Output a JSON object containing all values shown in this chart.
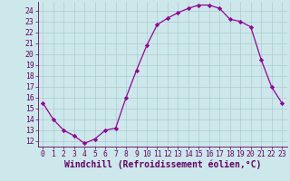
{
  "x": [
    0,
    1,
    2,
    3,
    4,
    5,
    6,
    7,
    8,
    9,
    10,
    11,
    12,
    13,
    14,
    15,
    16,
    17,
    18,
    19,
    20,
    21,
    22,
    23
  ],
  "y": [
    15.5,
    14.0,
    13.0,
    12.5,
    11.8,
    12.2,
    13.0,
    13.2,
    16.0,
    18.5,
    20.8,
    22.7,
    23.3,
    23.8,
    24.2,
    24.5,
    24.5,
    24.2,
    23.2,
    23.0,
    22.5,
    19.5,
    17.0,
    15.5
  ],
  "line_color": "#990099",
  "marker": "D",
  "marker_size": 2.2,
  "bg_color": "#cce8ea",
  "grid_color": "#aacdd0",
  "xlabel": "Windchill (Refroidissement éolien,°C)",
  "ylim_min": 11.5,
  "ylim_max": 24.8,
  "xlim_min": -0.5,
  "xlim_max": 23.5,
  "yticks": [
    12,
    13,
    14,
    15,
    16,
    17,
    18,
    19,
    20,
    21,
    22,
    23,
    24
  ],
  "xticks": [
    0,
    1,
    2,
    3,
    4,
    5,
    6,
    7,
    8,
    9,
    10,
    11,
    12,
    13,
    14,
    15,
    16,
    17,
    18,
    19,
    20,
    21,
    22,
    23
  ],
  "tick_fontsize": 5.8,
  "xlabel_fontsize": 7.0,
  "label_color": "#660066",
  "spine_color": "#660066",
  "linewidth": 0.9
}
